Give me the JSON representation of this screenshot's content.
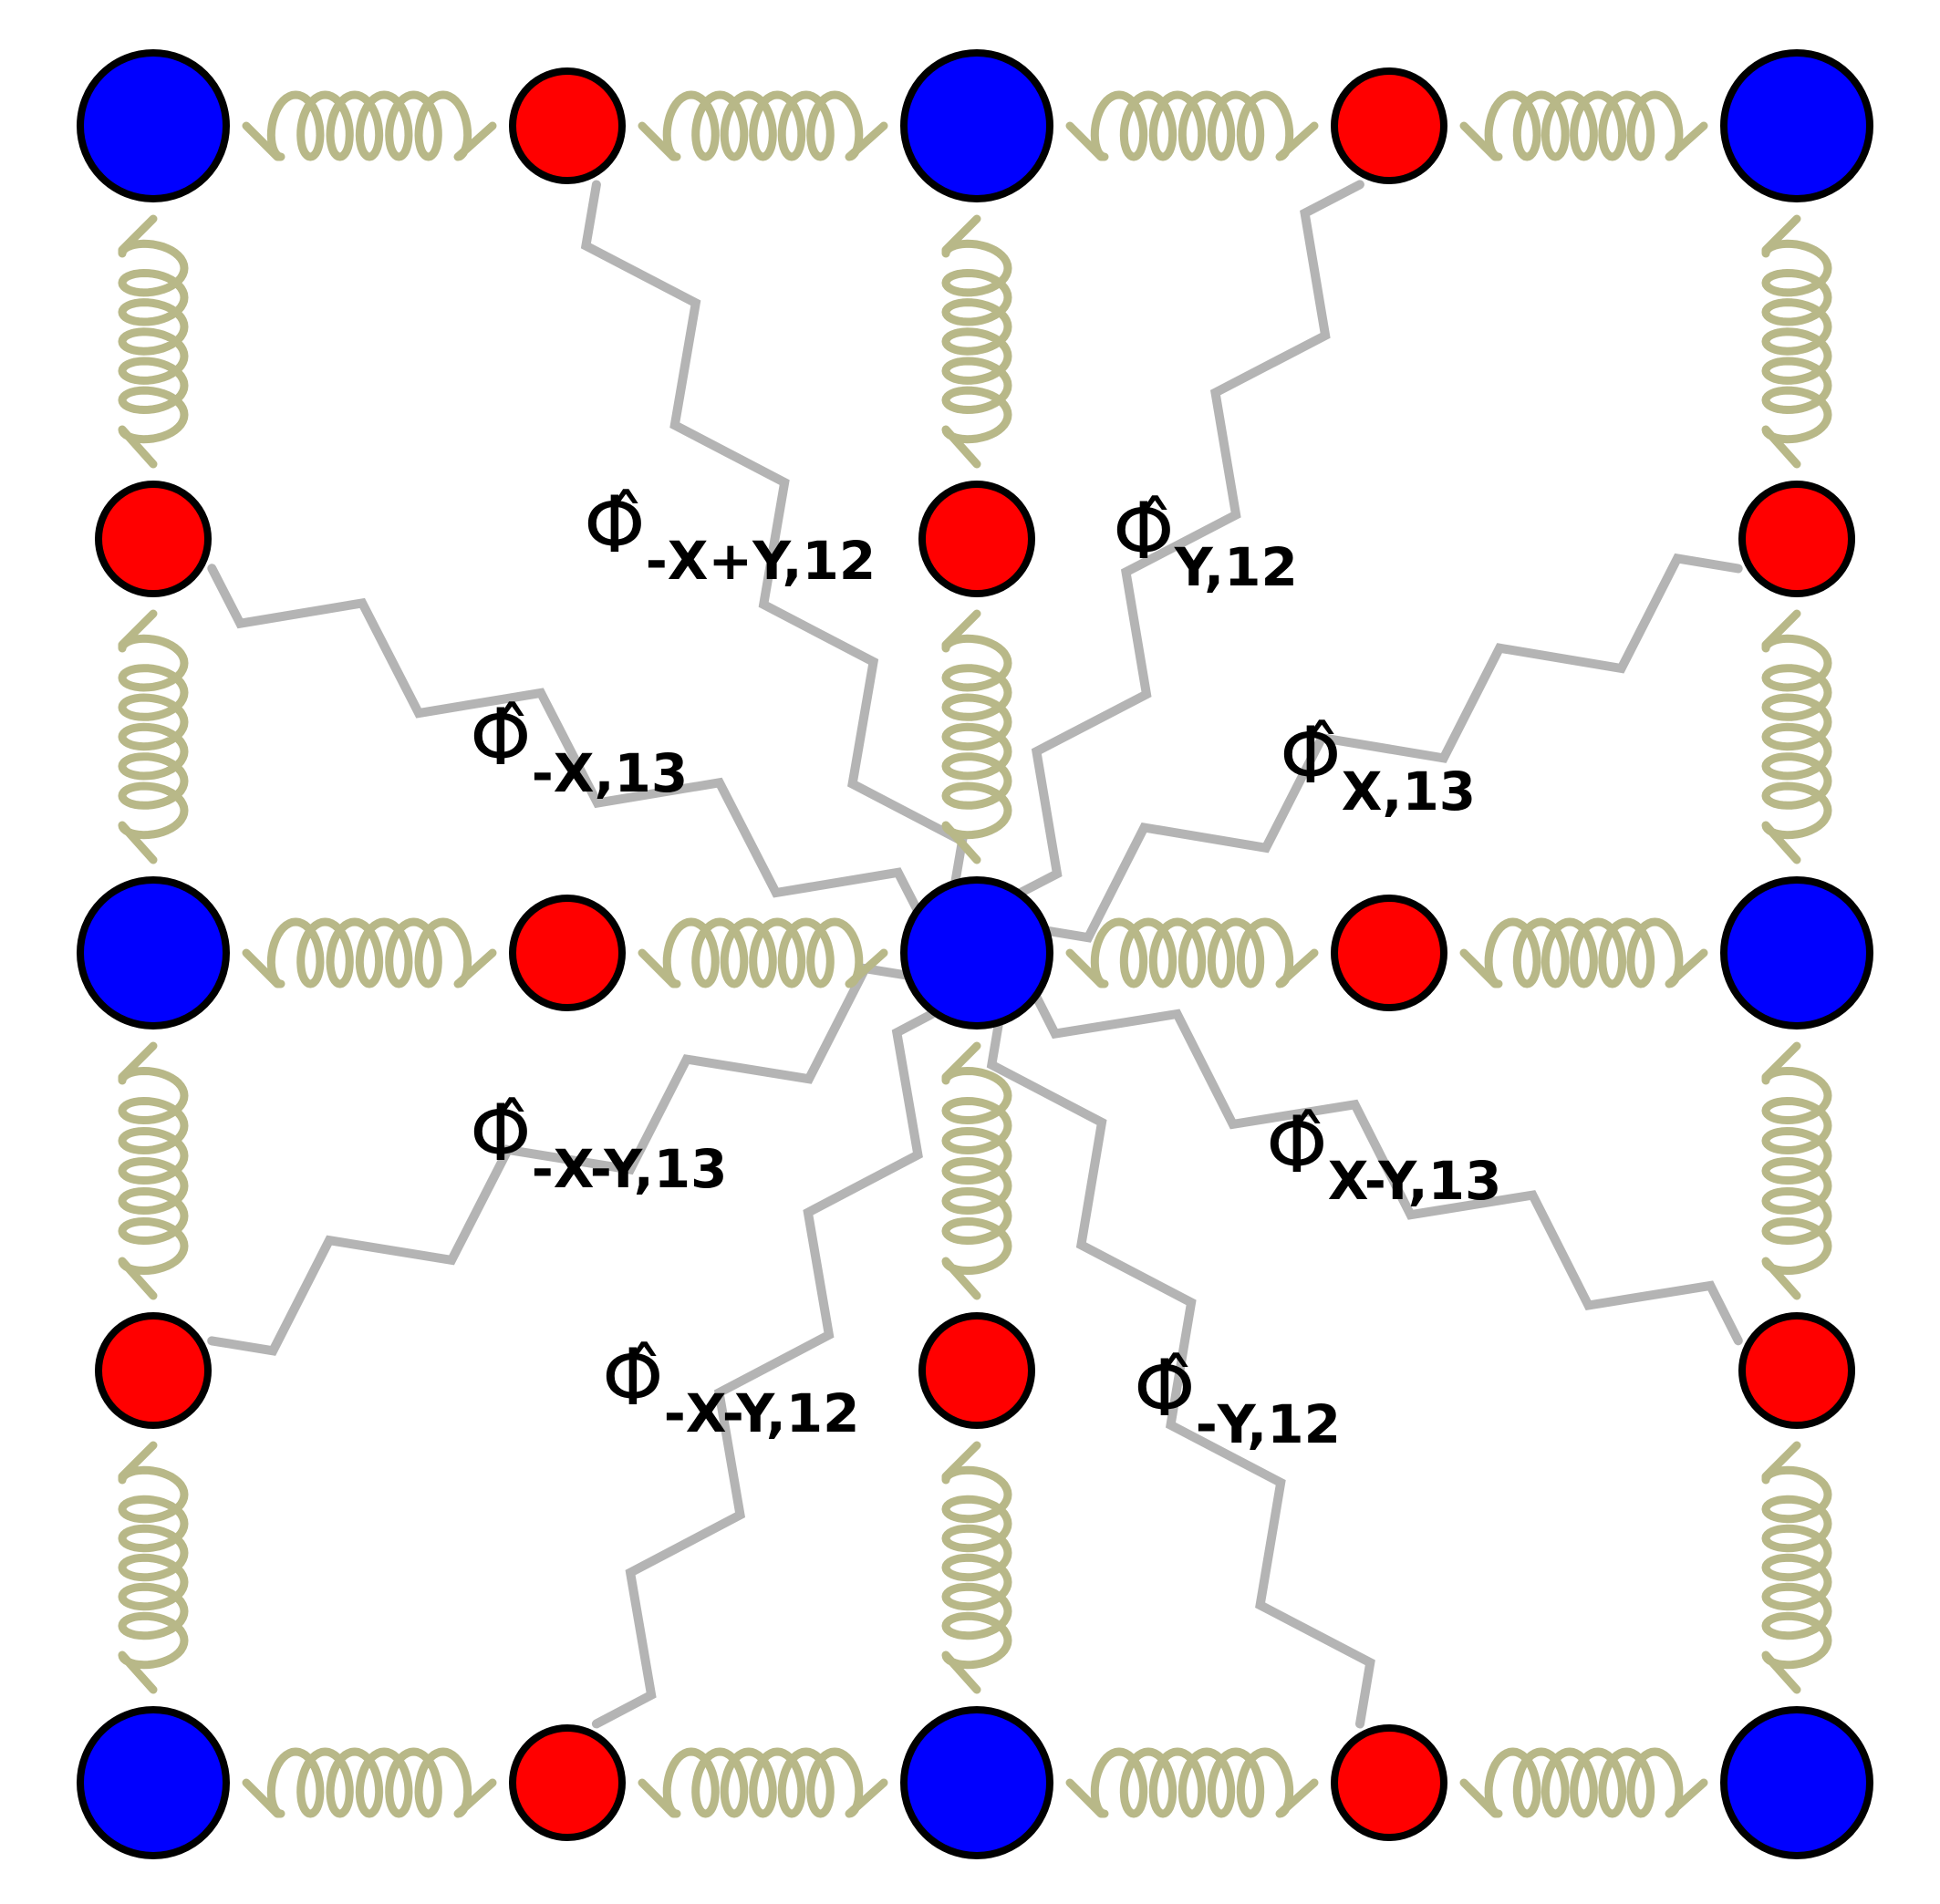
{
  "colors": {
    "background": "#ffffff",
    "large_atom": "#0000ff",
    "small_atom": "#ff0000",
    "atom_outline": "#000000",
    "bond_spring": "#b8b888",
    "interaction_spring": "#b4b4b4"
  },
  "labels": [
    {
      "symbol": "Φ̂",
      "subscript": "-X+Y,12"
    },
    {
      "symbol": "Φ̂",
      "subscript": "Y,12"
    },
    {
      "symbol": "Φ̂",
      "subscript": "-X,13"
    },
    {
      "symbol": "Φ̂",
      "subscript": "X,13"
    },
    {
      "symbol": "Φ̂",
      "subscript": "-X-Y,13"
    },
    {
      "symbol": "Φ̂",
      "subscript": "X-Y,13"
    },
    {
      "symbol": "Φ̂",
      "subscript": "-X-Y,12"
    },
    {
      "symbol": "Φ̂",
      "subscript": "-Y,12"
    }
  ]
}
